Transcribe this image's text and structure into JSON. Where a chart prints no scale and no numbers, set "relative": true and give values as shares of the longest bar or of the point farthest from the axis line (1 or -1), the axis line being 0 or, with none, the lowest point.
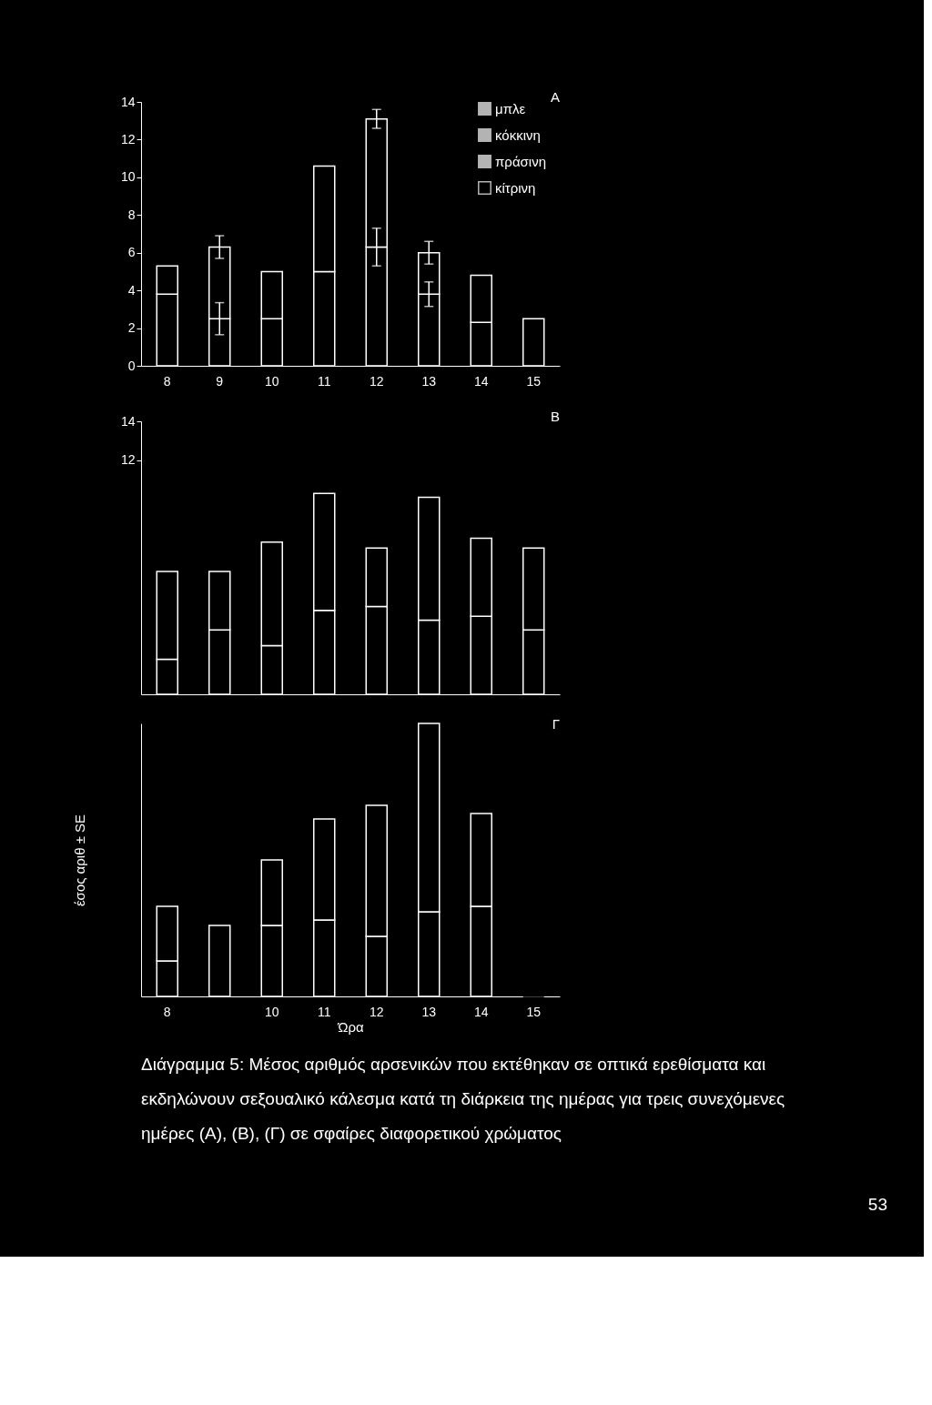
{
  "chart_data": [
    {
      "type": "bar",
      "stacked": true,
      "title": "Α",
      "categories": [
        "8",
        "9",
        "10",
        "11",
        "12",
        "13",
        "14",
        "15"
      ],
      "ylim": [
        0,
        14
      ],
      "yticks": [
        0,
        2,
        4,
        6,
        8,
        10,
        12,
        14
      ],
      "legend": "top right",
      "grid": false,
      "series": [
        {
          "color": "#000000",
          "values": [
            3.8,
            2.5,
            2.5,
            5.0,
            6.3,
            3.8,
            2.3,
            2.5
          ],
          "errors": [
            null,
            0.85,
            null,
            null,
            1.0,
            0.65,
            null,
            null
          ]
        },
        {
          "name": "μπλε",
          "color": "#ffffff",
          "values": [
            null,
            null,
            null,
            null,
            null,
            null,
            null,
            null
          ]
        },
        {
          "name": "κόκκινη",
          "color": "#ffffff",
          "values": [
            null,
            null,
            null,
            null,
            null,
            null,
            null,
            null
          ]
        },
        {
          "name": "πράσινη",
          "color": "#ffffff",
          "values": [
            null,
            null,
            null,
            null,
            null,
            null,
            null,
            null
          ]
        },
        {
          "name": "κίτρινη",
          "color": "#000000",
          "values": [
            1.5,
            3.8,
            2.5,
            5.6,
            6.8,
            2.2,
            2.5,
            null
          ],
          "errors": [
            null,
            0.6,
            null,
            null,
            0.5,
            0.6,
            null,
            null
          ]
        }
      ]
    },
    {
      "type": "bar",
      "stacked": true,
      "title": "Β",
      "categories": [
        "8",
        "9",
        "10",
        "11",
        "12",
        "13",
        "14",
        "15"
      ],
      "ylim": [
        0,
        14
      ],
      "yticks": [
        12,
        14
      ],
      "tick_labels": "y",
      "grid": false,
      "series": [
        {
          "color": "#000000",
          "values": [
            1.8,
            3.3,
            2.5,
            4.3,
            4.5,
            3.8,
            4.0,
            3.3
          ]
        },
        {
          "color": "#000000",
          "values": [
            4.5,
            3.0,
            5.3,
            6.0,
            3.0,
            6.3,
            4.0,
            4.2
          ]
        }
      ]
    },
    {
      "type": "bar",
      "stacked": true,
      "relative": true,
      "title": "Γ",
      "categories": [
        "8",
        null,
        "10",
        "11",
        "12",
        "13",
        "14",
        "15"
      ],
      "xlabel": "Ώρα",
      "ylabel": "έσος αριθ ± SE",
      "grid": false,
      "series": [
        {
          "color": "#000000",
          "values": [
            0.13,
            0.26,
            0.26,
            0.28,
            0.22,
            0.31,
            0.33,
            0
          ]
        },
        {
          "color": "#000000",
          "values": [
            0.2,
            null,
            0.24,
            0.37,
            0.48,
            0.69,
            0.34,
            null
          ]
        }
      ],
      "annotations": [
        "Διάγραμμα 5: Μέσος αριθμός αρσενικών που εκτέθηκαν σε οπτικά ερεθίσματα και",
        "εκδηλώνουν σεξουαλικό κάλεσμα κατά τη διάρκεια της ημέρας για τρεις συνεχόμενες",
        "ημέρες (Α), (Β), (Γ) σε σφαίρες διαφορετικού χρώματος",
        "53"
      ]
    }
  ]
}
